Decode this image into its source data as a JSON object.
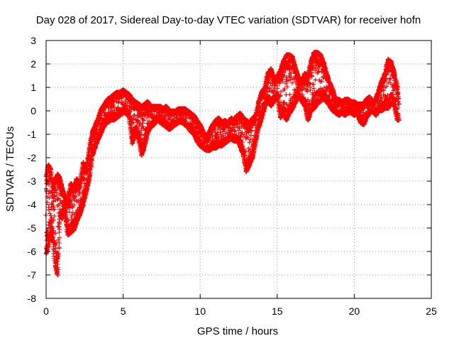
{
  "chart_data": {
    "type": "scatter",
    "title": "Day 028 of 2017, Sidereal Day-to-day VTEC variation (SDTVAR) for receiver hofn",
    "xlabel": "GPS time / hours",
    "ylabel": "SDTVAR / TECUs",
    "xlim": [
      0,
      25
    ],
    "ylim": [
      -8,
      3
    ],
    "x_ticks": [
      0,
      5,
      10,
      15,
      20,
      25
    ],
    "y_ticks": [
      -8,
      -7,
      -6,
      -5,
      -4,
      -3,
      -2,
      -1,
      0,
      1,
      2,
      3
    ],
    "grid": true,
    "marker": "+",
    "series": [
      {
        "name": "SDTVAR",
        "color": "#ff0000",
        "envelope": [
          {
            "x": 0.0,
            "low": -6.1,
            "high": -2.8
          },
          {
            "x": 0.15,
            "low": -5.7,
            "high": -2.3
          },
          {
            "x": 0.3,
            "low": -5.2,
            "high": -2.5
          },
          {
            "x": 0.45,
            "low": -5.6,
            "high": -3.3
          },
          {
            "x": 0.6,
            "low": -6.6,
            "high": -2.9
          },
          {
            "x": 0.75,
            "low": -7.0,
            "high": -2.7
          },
          {
            "x": 0.9,
            "low": -4.5,
            "high": -2.9
          },
          {
            "x": 1.05,
            "low": -4.6,
            "high": -3.3
          },
          {
            "x": 1.2,
            "low": -4.2,
            "high": -3.6
          },
          {
            "x": 1.4,
            "low": -5.3,
            "high": -3.9
          },
          {
            "x": 1.6,
            "low": -5.2,
            "high": -3.1
          },
          {
            "x": 1.8,
            "low": -5.1,
            "high": -3.3
          },
          {
            "x": 2.0,
            "low": -4.7,
            "high": -2.9
          },
          {
            "x": 2.2,
            "low": -4.4,
            "high": -3.1
          },
          {
            "x": 2.4,
            "low": -4.0,
            "high": -2.2
          },
          {
            "x": 2.6,
            "low": -3.5,
            "high": -2.5
          },
          {
            "x": 2.8,
            "low": -2.9,
            "high": -1.6
          },
          {
            "x": 3.0,
            "low": -1.9,
            "high": -0.9
          },
          {
            "x": 3.2,
            "low": -1.5,
            "high": -0.6
          },
          {
            "x": 3.4,
            "low": -1.2,
            "high": -0.3
          },
          {
            "x": 3.6,
            "low": -0.9,
            "high": 0.1
          },
          {
            "x": 3.8,
            "low": -0.6,
            "high": 0.3
          },
          {
            "x": 4.0,
            "low": -0.5,
            "high": 0.5
          },
          {
            "x": 4.2,
            "low": -0.4,
            "high": 0.6
          },
          {
            "x": 4.4,
            "low": -0.4,
            "high": 0.7
          },
          {
            "x": 4.6,
            "low": -0.3,
            "high": 0.8
          },
          {
            "x": 4.8,
            "low": -0.2,
            "high": 0.8
          },
          {
            "x": 5.0,
            "low": -0.1,
            "high": 0.9
          },
          {
            "x": 5.2,
            "low": -0.1,
            "high": 0.8
          },
          {
            "x": 5.4,
            "low": -0.3,
            "high": 0.7
          },
          {
            "x": 5.6,
            "low": -1.4,
            "high": 0.5
          },
          {
            "x": 5.8,
            "low": -0.9,
            "high": 0.4
          },
          {
            "x": 6.0,
            "low": -1.2,
            "high": 0.3
          },
          {
            "x": 6.2,
            "low": -1.9,
            "high": 0.2
          },
          {
            "x": 6.4,
            "low": -1.5,
            "high": 0.3
          },
          {
            "x": 6.6,
            "low": -0.9,
            "high": 0.4
          },
          {
            "x": 6.8,
            "low": -0.7,
            "high": 0.2
          },
          {
            "x": 7.0,
            "low": -0.6,
            "high": 0.2
          },
          {
            "x": 7.2,
            "low": -0.4,
            "high": 0.2
          },
          {
            "x": 7.4,
            "low": -0.5,
            "high": 0.2
          },
          {
            "x": 7.6,
            "low": -0.6,
            "high": 0.1
          },
          {
            "x": 7.8,
            "low": -0.7,
            "high": 0.2
          },
          {
            "x": 8.0,
            "low": -0.8,
            "high": 0.0
          },
          {
            "x": 8.2,
            "low": -0.7,
            "high": 0.0
          },
          {
            "x": 8.4,
            "low": -0.6,
            "high": 0.0
          },
          {
            "x": 8.6,
            "low": -0.5,
            "high": 0.1
          },
          {
            "x": 8.8,
            "low": -0.5,
            "high": 0.1
          },
          {
            "x": 9.0,
            "low": -0.6,
            "high": 0.1
          },
          {
            "x": 9.2,
            "low": -0.7,
            "high": 0.0
          },
          {
            "x": 9.4,
            "low": -0.9,
            "high": -0.1
          },
          {
            "x": 9.6,
            "low": -1.0,
            "high": -0.2
          },
          {
            "x": 9.8,
            "low": -1.3,
            "high": -0.4
          },
          {
            "x": 10.0,
            "low": -1.5,
            "high": -0.6
          },
          {
            "x": 10.2,
            "low": -1.6,
            "high": -0.9
          },
          {
            "x": 10.4,
            "low": -1.7,
            "high": -1.1
          },
          {
            "x": 10.6,
            "low": -1.7,
            "high": -0.9
          },
          {
            "x": 10.8,
            "low": -1.6,
            "high": -0.6
          },
          {
            "x": 11.0,
            "low": -1.6,
            "high": -0.4
          },
          {
            "x": 11.2,
            "low": -1.5,
            "high": -0.3
          },
          {
            "x": 11.4,
            "low": -1.5,
            "high": -0.5
          },
          {
            "x": 11.6,
            "low": -1.4,
            "high": -0.4
          },
          {
            "x": 11.8,
            "low": -1.3,
            "high": -0.5
          },
          {
            "x": 12.0,
            "low": -1.2,
            "high": -0.3
          },
          {
            "x": 12.2,
            "low": -1.3,
            "high": -0.4
          },
          {
            "x": 12.4,
            "low": -1.3,
            "high": -0.2
          },
          {
            "x": 12.6,
            "low": -1.5,
            "high": -0.1
          },
          {
            "x": 12.8,
            "low": -1.9,
            "high": -0.3
          },
          {
            "x": 13.0,
            "low": -2.6,
            "high": -0.4
          },
          {
            "x": 13.2,
            "low": -2.3,
            "high": -0.5
          },
          {
            "x": 13.4,
            "low": -2.0,
            "high": -0.3
          },
          {
            "x": 13.6,
            "low": -1.3,
            "high": -0.2
          },
          {
            "x": 13.8,
            "low": -0.7,
            "high": 0.4
          },
          {
            "x": 14.0,
            "low": -0.3,
            "high": 0.8
          },
          {
            "x": 14.2,
            "low": 0.2,
            "high": 1.0
          },
          {
            "x": 14.4,
            "low": 0.4,
            "high": 1.6
          },
          {
            "x": 14.6,
            "low": 0.2,
            "high": 1.8
          },
          {
            "x": 14.8,
            "low": 0.4,
            "high": 1.3
          },
          {
            "x": 15.0,
            "low": 0.6,
            "high": 1.5
          },
          {
            "x": 15.2,
            "low": -0.3,
            "high": 1.7
          },
          {
            "x": 15.4,
            "low": -0.1,
            "high": 2.1
          },
          {
            "x": 15.6,
            "low": -0.4,
            "high": 2.4
          },
          {
            "x": 15.8,
            "low": -0.1,
            "high": 2.4
          },
          {
            "x": 16.0,
            "low": 0.1,
            "high": 2.3
          },
          {
            "x": 16.2,
            "low": 0.4,
            "high": 1.8
          },
          {
            "x": 16.4,
            "low": 0.6,
            "high": 1.4
          },
          {
            "x": 16.6,
            "low": 0.4,
            "high": 1.3
          },
          {
            "x": 16.8,
            "low": 0.2,
            "high": 1.6
          },
          {
            "x": 17.0,
            "low": -0.4,
            "high": 1.5
          },
          {
            "x": 17.2,
            "low": 0.0,
            "high": 2.1
          },
          {
            "x": 17.4,
            "low": 0.1,
            "high": 2.5
          },
          {
            "x": 17.6,
            "low": 0.3,
            "high": 2.5
          },
          {
            "x": 17.8,
            "low": 0.4,
            "high": 2.4
          },
          {
            "x": 18.0,
            "low": 0.5,
            "high": 2.1
          },
          {
            "x": 18.2,
            "low": 0.4,
            "high": 1.6
          },
          {
            "x": 18.4,
            "low": 0.2,
            "high": 1.2
          },
          {
            "x": 18.6,
            "low": 0.0,
            "high": 0.9
          },
          {
            "x": 18.8,
            "low": -0.1,
            "high": 0.5
          },
          {
            "x": 19.0,
            "low": -0.2,
            "high": 0.5
          },
          {
            "x": 19.2,
            "low": -0.1,
            "high": 0.4
          },
          {
            "x": 19.4,
            "low": -0.2,
            "high": 0.5
          },
          {
            "x": 19.6,
            "low": -0.1,
            "high": 0.5
          },
          {
            "x": 19.8,
            "low": -0.1,
            "high": 0.4
          },
          {
            "x": 20.0,
            "low": -0.2,
            "high": 0.4
          },
          {
            "x": 20.2,
            "low": -0.1,
            "high": 0.3
          },
          {
            "x": 20.4,
            "low": -0.5,
            "high": 0.3
          },
          {
            "x": 20.6,
            "low": -0.6,
            "high": 0.3
          },
          {
            "x": 20.8,
            "low": -0.3,
            "high": 0.5
          },
          {
            "x": 21.0,
            "low": -0.1,
            "high": 0.6
          },
          {
            "x": 21.2,
            "low": 0.0,
            "high": 0.4
          },
          {
            "x": 21.4,
            "low": -0.2,
            "high": 0.5
          },
          {
            "x": 21.6,
            "low": 0.0,
            "high": 0.9
          },
          {
            "x": 21.8,
            "low": 0.0,
            "high": 1.3
          },
          {
            "x": 22.0,
            "low": 0.1,
            "high": 1.6
          },
          {
            "x": 22.2,
            "low": 0.1,
            "high": 2.2
          },
          {
            "x": 22.4,
            "low": 0.3,
            "high": 2.1
          },
          {
            "x": 22.6,
            "low": 0.2,
            "high": 1.6
          },
          {
            "x": 22.8,
            "low": -0.4,
            "high": 1.0
          },
          {
            "x": 22.9,
            "low": -0.4,
            "high": 0.3
          }
        ]
      }
    ]
  }
}
